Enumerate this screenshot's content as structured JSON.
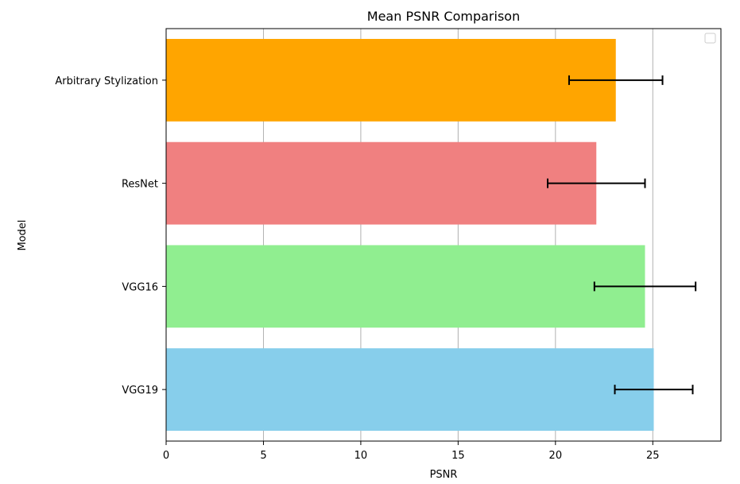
{
  "chart_data": {
    "type": "bar",
    "orientation": "horizontal",
    "title": "Mean PSNR Comparison",
    "xlabel": "PSNR",
    "ylabel": "Model",
    "xlim": [
      0,
      28.5
    ],
    "xticks": [
      0,
      5,
      10,
      15,
      20,
      25
    ],
    "grid": "x",
    "legend": "top-right (empty)",
    "categories": [
      "VGG19",
      "VGG16",
      "ResNet",
      "Arbitrary Stylization"
    ],
    "values": [
      25.05,
      24.6,
      22.1,
      23.1
    ],
    "errors": [
      2.0,
      2.6,
      2.5,
      2.4
    ],
    "colors": [
      "#87ceeb",
      "#90ee90",
      "#f08080",
      "#ffa500"
    ]
  }
}
